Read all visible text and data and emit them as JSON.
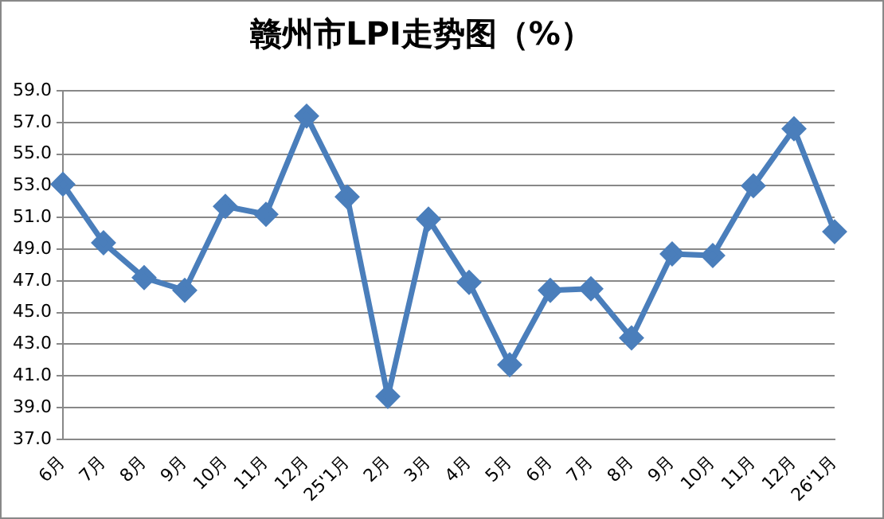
{
  "chart_data": {
    "type": "line",
    "title": "赣州市LPI走势图（%）",
    "categories": [
      "6月",
      "7月",
      "8月",
      "9月",
      "10月",
      "11月",
      "12月",
      "25'1月",
      "2月",
      "3月",
      "4月",
      "5月",
      "6月",
      "7月",
      "8月",
      "9月",
      "10月",
      "11月",
      "12月",
      "26'1月"
    ],
    "series": [
      {
        "color": "#4a7ebb",
        "values": [
          53.1,
          49.4,
          47.2,
          46.4,
          51.7,
          51.2,
          57.4,
          52.3,
          39.7,
          50.9,
          46.9,
          41.7,
          46.4,
          46.5,
          43.4,
          48.7,
          48.6,
          53.0,
          56.6,
          50.1
        ]
      }
    ],
    "ylim": [
      37,
      59
    ],
    "yticks": [
      {
        "value": 37,
        "label": "37.0"
      },
      {
        "value": 39,
        "label": "39.0"
      },
      {
        "value": 41,
        "label": "41.0"
      },
      {
        "value": 43,
        "label": "43.0"
      },
      {
        "value": 45,
        "label": "45.0"
      },
      {
        "value": 47,
        "label": "47.0"
      },
      {
        "value": 49,
        "label": "49.0"
      },
      {
        "value": 51,
        "label": "51.0"
      },
      {
        "value": 53,
        "label": "53.0"
      },
      {
        "value": 55,
        "label": "55.0"
      },
      {
        "value": 57,
        "label": "57.0"
      },
      {
        "value": 59,
        "label": "59.0"
      }
    ],
    "grid": "y",
    "legend": false,
    "marker": "diamond",
    "line_style": "solid"
  }
}
